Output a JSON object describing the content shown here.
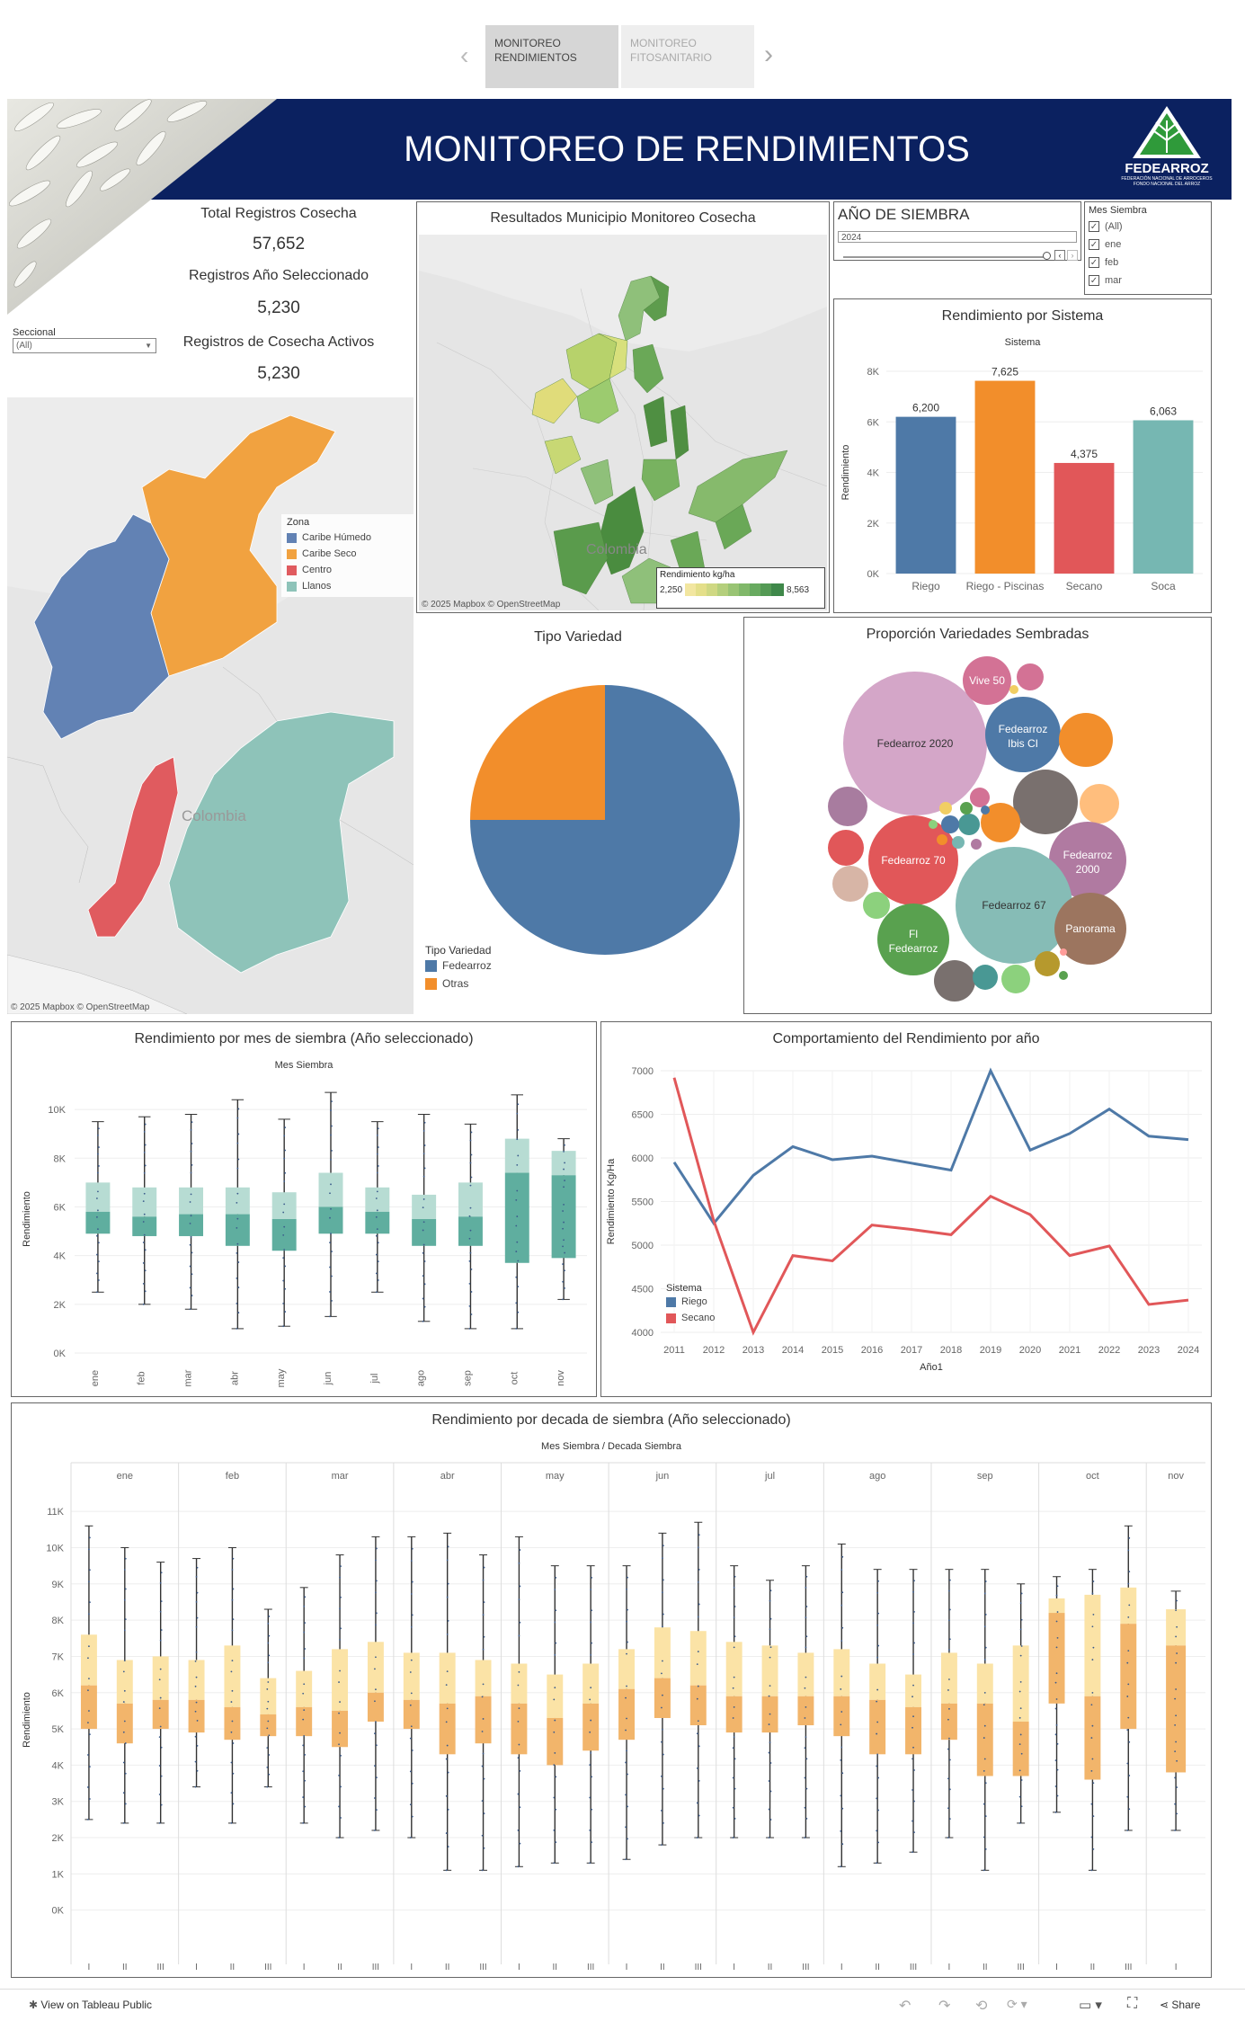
{
  "tabs": [
    {
      "label_line1": "MONITOREO",
      "label_line2": "RENDIMIENTOS"
    },
    {
      "label_line1": "MONITOREO",
      "label_line2": "FITOSANITARIO"
    }
  ],
  "header": {
    "title": "MONITOREO DE RENDIMIENTOS",
    "logo_name": "FEDEARROZ",
    "logo_sub1": "FEDERACIÓN NACIONAL DE ARROCEROS",
    "logo_sub2": "FONDO NACIONAL DEL ARROZ",
    "bg_color": "#0b2160"
  },
  "kpis": {
    "total_label": "Total Registros Cosecha",
    "total_value": "57,652",
    "year_label": "Registros Año Seleccionado",
    "year_value": "5,230",
    "active_label": "Registros de Cosecha Activos",
    "active_value": "5,230"
  },
  "seccional": {
    "label": "Seccional",
    "value": "(All)"
  },
  "zona_map": {
    "legend_title": "Zona",
    "zones": [
      {
        "name": "Caribe Húmedo",
        "color": "#6282b4"
      },
      {
        "name": "Caribe Seco",
        "color": "#f1a240"
      },
      {
        "name": "Centro",
        "color": "#e05b5f"
      },
      {
        "name": "Llanos",
        "color": "#8ec3b9"
      }
    ],
    "country_label": "Colombia",
    "attribution": "© 2025 Mapbox  © OpenStreetMap"
  },
  "municipio_map": {
    "title": "Resultados Municipio Monitoreo Cosecha",
    "legend_title": "Rendimiento kg/ha",
    "legend_min": "2,250",
    "legend_max": "8,563",
    "country_label": "Colombia",
    "attribution": "© 2025 Mapbox  © OpenStreetMap"
  },
  "anio_siembra": {
    "title": "AÑO DE SIEMBRA",
    "value": "2024"
  },
  "mes_siembra": {
    "title": "Mes Siembra",
    "options": [
      "(All)",
      "ene",
      "feb",
      "mar"
    ]
  },
  "tipo_variedad": {
    "title": "Tipo Variedad",
    "legend_title": "Tipo Variedad",
    "chart_data": {
      "type": "pie",
      "slices": [
        {
          "label": "Fedearroz",
          "value": 75,
          "color": "#4e79a7"
        },
        {
          "label": "Otras",
          "value": 25,
          "color": "#f28e2b"
        }
      ]
    }
  },
  "proporcion_variedades": {
    "title": "Proporción Variedades Sembradas",
    "labels": [
      "Vive 50",
      "Fedearroz Ibis CI",
      "Fedearroz 2020",
      "Fedearroz 2000",
      "Fedearroz 70",
      "Fedearroz 67",
      "Panorama",
      "Fl Fedearroz"
    ]
  },
  "rend_sistema": {
    "title": "Rendimiento por Sistema",
    "subtitle": "Sistema",
    "ylabel": "Rendimiento",
    "chart_data": {
      "type": "bar",
      "categories": [
        "Riego",
        "Riego - Piscinas",
        "Secano",
        "Soca"
      ],
      "values": [
        6200,
        7625,
        4375,
        6063
      ],
      "value_labels": [
        "6,200",
        "7,625",
        "4,375",
        "6,063"
      ],
      "colors": [
        "#4e79a7",
        "#f28e2b",
        "#e15759",
        "#76b7b2"
      ],
      "ylim": [
        0,
        8000
      ],
      "yticks": [
        "0K",
        "2K",
        "4K",
        "6K",
        "8K"
      ]
    }
  },
  "rend_mes": {
    "title": "Rendimiento por mes de siembra (Año seleccionado)",
    "subtitle": "Mes Siembra",
    "ylabel": "Rendimiento",
    "chart_data": {
      "type": "box",
      "categories": [
        "ene",
        "feb",
        "mar",
        "abr",
        "may",
        "jun",
        "jul",
        "ago",
        "sep",
        "oct",
        "nov"
      ],
      "ylim": [
        0,
        11000
      ],
      "yticks": [
        "0K",
        "2K",
        "4K",
        "6K",
        "8K",
        "10K"
      ],
      "boxes": [
        {
          "min": 2500,
          "q1": 4900,
          "median": 5800,
          "q3": 7000,
          "max": 9500
        },
        {
          "min": 2000,
          "q1": 4800,
          "median": 5600,
          "q3": 6800,
          "max": 9700
        },
        {
          "min": 1800,
          "q1": 4800,
          "median": 5700,
          "q3": 6800,
          "max": 9800
        },
        {
          "min": 1000,
          "q1": 4400,
          "median": 5700,
          "q3": 6800,
          "max": 10400
        },
        {
          "min": 1100,
          "q1": 4200,
          "median": 5500,
          "q3": 6600,
          "max": 9600
        },
        {
          "min": 1500,
          "q1": 4900,
          "median": 6000,
          "q3": 7400,
          "max": 10700
        },
        {
          "min": 2500,
          "q1": 4900,
          "median": 5800,
          "q3": 6800,
          "max": 9500
        },
        {
          "min": 1300,
          "q1": 4400,
          "median": 5500,
          "q3": 6500,
          "max": 9800
        },
        {
          "min": 1000,
          "q1": 4400,
          "median": 5600,
          "q3": 7000,
          "max": 9400
        },
        {
          "min": 1000,
          "q1": 3700,
          "median": 7400,
          "q3": 8800,
          "max": 10600
        },
        {
          "min": 2200,
          "q1": 3900,
          "median": 7300,
          "q3": 8300,
          "max": 8800
        }
      ]
    }
  },
  "rend_anio": {
    "title": "Comportamiento del Rendimiento por año",
    "ylabel": "Rendimiento Kg/Ha",
    "xlabel": "Año1",
    "legend_title": "Sistema",
    "chart_data": {
      "type": "line",
      "x": [
        "2011",
        "2012",
        "2013",
        "2014",
        "2015",
        "2016",
        "2017",
        "2018",
        "2019",
        "2020",
        "2021",
        "2022",
        "2023",
        "2024"
      ],
      "ylim": [
        4000,
        7000
      ],
      "yticks": [
        "4000",
        "4500",
        "5000",
        "5500",
        "6000",
        "6500",
        "7000"
      ],
      "series": [
        {
          "name": "Riego",
          "color": "#4e79a7",
          "values": [
            5950,
            5250,
            5800,
            6130,
            5980,
            6020,
            5940,
            5860,
            7000,
            6090,
            6280,
            6560,
            6250,
            6210
          ]
        },
        {
          "name": "Secano",
          "color": "#e15759",
          "values": [
            6920,
            5280,
            4000,
            4880,
            4820,
            5230,
            5180,
            5120,
            5560,
            5350,
            4880,
            4990,
            4320,
            4370
          ]
        }
      ]
    }
  },
  "rend_decada": {
    "title": "Rendimiento por decada de siembra (Año seleccionado)",
    "subtitle": "Mes Siembra  /  Decada Siembra",
    "ylabel": "Rendimiento",
    "chart_data": {
      "type": "box",
      "months": [
        "ene",
        "feb",
        "mar",
        "abr",
        "may",
        "jun",
        "jul",
        "ago",
        "sep",
        "oct",
        "nov"
      ],
      "decades": [
        "I",
        "II",
        "III"
      ],
      "ylim": [
        -1000,
        11500
      ],
      "yticks": [
        "0K",
        "1K",
        "2K",
        "3K",
        "4K",
        "5K",
        "6K",
        "7K",
        "8K",
        "9K",
        "10K",
        "11K"
      ],
      "boxes": [
        [
          {
            "min": 2500,
            "q1": 5000,
            "median": 6200,
            "q3": 7600,
            "max": 10600
          },
          {
            "min": 2400,
            "q1": 4600,
            "median": 5700,
            "q3": 6900,
            "max": 10000
          },
          {
            "min": 2400,
            "q1": 5000,
            "median": 5800,
            "q3": 7000,
            "max": 9600
          }
        ],
        [
          {
            "min": 3400,
            "q1": 4900,
            "median": 5800,
            "q3": 6900,
            "max": 9700
          },
          {
            "min": 2400,
            "q1": 4700,
            "median": 5600,
            "q3": 7300,
            "max": 10000
          },
          {
            "min": 3400,
            "q1": 4800,
            "median": 5400,
            "q3": 6400,
            "max": 8300
          }
        ],
        [
          {
            "min": 2400,
            "q1": 4800,
            "median": 5600,
            "q3": 6600,
            "max": 8900
          },
          {
            "min": 2000,
            "q1": 4500,
            "median": 5500,
            "q3": 7200,
            "max": 9800
          },
          {
            "min": 2200,
            "q1": 5200,
            "median": 6000,
            "q3": 7400,
            "max": 10300
          }
        ],
        [
          {
            "min": 2000,
            "q1": 5000,
            "median": 5800,
            "q3": 7100,
            "max": 10300
          },
          {
            "min": 1100,
            "q1": 4300,
            "median": 5700,
            "q3": 7100,
            "max": 10400
          },
          {
            "min": 1100,
            "q1": 4600,
            "median": 5900,
            "q3": 6900,
            "max": 9800
          }
        ],
        [
          {
            "min": 1200,
            "q1": 4300,
            "median": 5700,
            "q3": 6800,
            "max": 10300
          },
          {
            "min": 1300,
            "q1": 4000,
            "median": 5300,
            "q3": 6500,
            "max": 9500
          },
          {
            "min": 1300,
            "q1": 4400,
            "median": 5700,
            "q3": 6800,
            "max": 9500
          }
        ],
        [
          {
            "min": 1400,
            "q1": 4700,
            "median": 6100,
            "q3": 7200,
            "max": 9500
          },
          {
            "min": 1800,
            "q1": 5300,
            "median": 6400,
            "q3": 7800,
            "max": 10400
          },
          {
            "min": 2000,
            "q1": 5100,
            "median": 6200,
            "q3": 7700,
            "max": 10700
          }
        ],
        [
          {
            "min": 2000,
            "q1": 4900,
            "median": 5900,
            "q3": 7400,
            "max": 9500
          },
          {
            "min": 2000,
            "q1": 4900,
            "median": 5900,
            "q3": 7300,
            "max": 9100
          },
          {
            "min": 2000,
            "q1": 5100,
            "median": 5900,
            "q3": 7100,
            "max": 9500
          }
        ],
        [
          {
            "min": 1200,
            "q1": 4800,
            "median": 5900,
            "q3": 7200,
            "max": 10100
          },
          {
            "min": 1300,
            "q1": 4300,
            "median": 5800,
            "q3": 6800,
            "max": 9400
          },
          {
            "min": 1600,
            "q1": 4300,
            "median": 5600,
            "q3": 6500,
            "max": 9400
          }
        ],
        [
          {
            "min": 2000,
            "q1": 4700,
            "median": 5700,
            "q3": 7100,
            "max": 9400
          },
          {
            "min": 1100,
            "q1": 3700,
            "median": 5700,
            "q3": 6800,
            "max": 9400
          },
          {
            "min": 2400,
            "q1": 3700,
            "median": 5200,
            "q3": 7300,
            "max": 9000
          }
        ],
        [
          {
            "min": 2700,
            "q1": 5700,
            "median": 8200,
            "q3": 8600,
            "max": 9200
          },
          {
            "min": 1100,
            "q1": 3600,
            "median": 5900,
            "q3": 8700,
            "max": 9400
          },
          {
            "min": 2200,
            "q1": 5000,
            "median": 7900,
            "q3": 8900,
            "max": 10600
          }
        ],
        [
          {
            "min": 2200,
            "q1": 3800,
            "median": 7300,
            "q3": 8300,
            "max": 8800
          }
        ]
      ]
    }
  },
  "footer": {
    "view_label": "View on Tableau Public",
    "share_label": "Share"
  }
}
